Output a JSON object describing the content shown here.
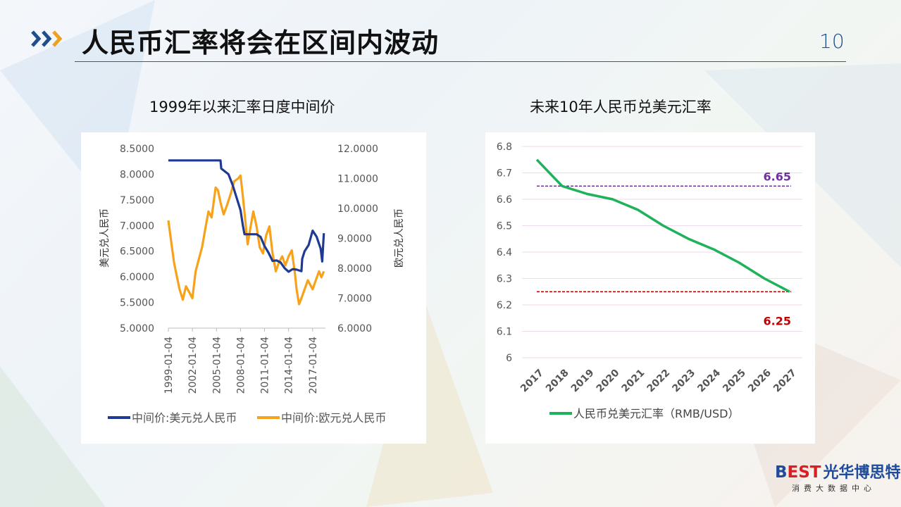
{
  "slide": {
    "title": "人民币汇率将会在区间内波动",
    "page_number": "10",
    "accent_color": "#1f4e8c"
  },
  "left_panel": {
    "heading": "1999年以来汇率日度中间价"
  },
  "right_panel": {
    "heading": "未来10年人民币兑美元汇率"
  },
  "logo": {
    "best_prefix": "B",
    "best_suffix": "EST",
    "name": "光华博思特",
    "subtitle": "消费大数据中心"
  },
  "chart_data": [
    {
      "type": "line",
      "title": "1999年以来汇率日度中间价",
      "x_ticks": [
        "1999-01-04",
        "2002-01-04",
        "2005-01-04",
        "2008-01-04",
        "2011-01-04",
        "2014-01-04",
        "2017-01-04"
      ],
      "ylabel": "美元兑人民币",
      "ylabel_right": "欧元兑人民币",
      "y_ticks": [
        "5.0000",
        "5.5000",
        "6.0000",
        "6.5000",
        "7.0000",
        "7.5000",
        "8.0000",
        "8.5000"
      ],
      "y_ticks_right": [
        "6.0000",
        "7.0000",
        "8.0000",
        "9.0000",
        "10.0000",
        "11.0000",
        "12.0000"
      ],
      "ylim": [
        5.0,
        8.5
      ],
      "ylim_right": [
        6.0,
        12.0
      ],
      "xlim": [
        1999.0,
        2018.6
      ],
      "legend_position": "bottom",
      "series": [
        {
          "name": "中间价:美元兑人民币",
          "color": "#1f3a93",
          "axis": "left",
          "x": [
            1999.0,
            2005.5,
            2005.6,
            2006.5,
            2007.0,
            2007.5,
            2008.0,
            2008.3,
            2008.5,
            2009.0,
            2010.0,
            2010.5,
            2011.0,
            2011.5,
            2012.0,
            2012.5,
            2013.0,
            2013.5,
            2014.0,
            2014.5,
            2015.0,
            2015.6,
            2015.7,
            2016.0,
            2016.5,
            2017.0,
            2017.5,
            2018.0,
            2018.2,
            2018.4
          ],
          "y": [
            8.27,
            8.27,
            8.11,
            8.0,
            7.8,
            7.55,
            7.3,
            7.0,
            6.83,
            6.83,
            6.83,
            6.78,
            6.6,
            6.47,
            6.31,
            6.32,
            6.28,
            6.17,
            6.1,
            6.15,
            6.14,
            6.11,
            6.35,
            6.5,
            6.62,
            6.9,
            6.78,
            6.55,
            6.3,
            6.85
          ]
        },
        {
          "name": "中间价:欧元兑人民币",
          "color": "#f7a21b",
          "axis": "right",
          "x": [
            1999.0,
            1999.3,
            1999.7,
            2000.0,
            2000.4,
            2000.8,
            2001.2,
            2001.6,
            2002.0,
            2002.4,
            2002.8,
            2003.2,
            2003.6,
            2004.0,
            2004.4,
            2004.9,
            2005.2,
            2005.5,
            2005.9,
            2006.3,
            2006.8,
            2007.2,
            2007.7,
            2008.0,
            2008.3,
            2008.6,
            2008.9,
            2009.2,
            2009.6,
            2010.0,
            2010.4,
            2010.8,
            2011.2,
            2011.6,
            2012.0,
            2012.4,
            2012.8,
            2013.2,
            2013.6,
            2014.0,
            2014.4,
            2014.8,
            2015.0,
            2015.3,
            2015.6,
            2016.0,
            2016.4,
            2016.8,
            2017.0,
            2017.4,
            2017.8,
            2018.1,
            2018.4
          ],
          "y": [
            9.6,
            9.0,
            8.2,
            7.8,
            7.3,
            6.95,
            7.4,
            7.2,
            7.0,
            7.9,
            8.3,
            8.7,
            9.3,
            9.9,
            9.7,
            10.7,
            10.6,
            10.2,
            9.8,
            10.1,
            10.5,
            10.9,
            11.0,
            11.1,
            10.4,
            9.6,
            8.8,
            9.3,
            9.9,
            9.4,
            8.7,
            8.5,
            9.1,
            9.4,
            8.5,
            7.9,
            8.2,
            8.4,
            8.1,
            8.4,
            8.6,
            7.8,
            7.3,
            6.8,
            7.0,
            7.3,
            7.6,
            7.4,
            7.3,
            7.6,
            7.9,
            7.7,
            7.9
          ]
        }
      ]
    },
    {
      "type": "line",
      "title": "未来10年人民币兑美元汇率",
      "categories": [
        "2017",
        "2018",
        "2019",
        "2020",
        "2021",
        "2022",
        "2023",
        "2024",
        "2025",
        "2026",
        "2027"
      ],
      "y_ticks": [
        "6",
        "6.1",
        "6.2",
        "6.3",
        "6.4",
        "6.5",
        "6.6",
        "6.7",
        "6.8"
      ],
      "ylim": [
        6.0,
        6.8
      ],
      "legend_position": "bottom",
      "grid": true,
      "series": [
        {
          "name": "人民币兑美元汇率（RMB/USD）",
          "color": "#1fb25a",
          "values": [
            6.75,
            6.65,
            6.62,
            6.6,
            6.56,
            6.5,
            6.45,
            6.41,
            6.36,
            6.3,
            6.25
          ]
        }
      ],
      "reference_lines": [
        {
          "value": 6.65,
          "label": "6.65",
          "color": "#7030a0"
        },
        {
          "value": 6.25,
          "label": "6.25",
          "color": "#c00000"
        }
      ]
    }
  ]
}
